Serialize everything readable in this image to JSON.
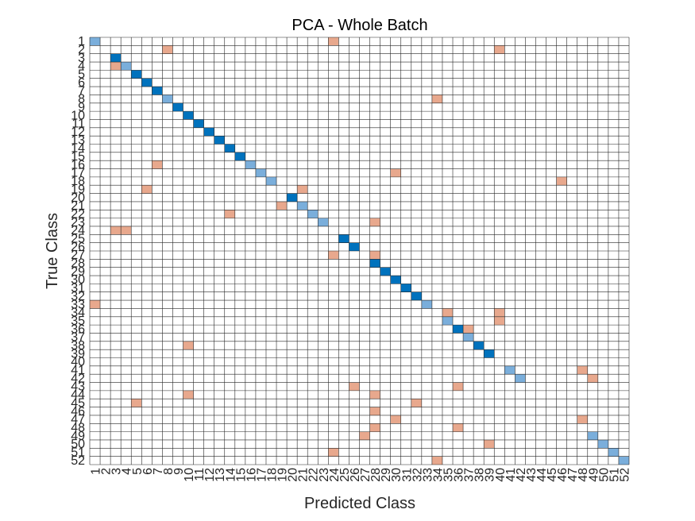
{
  "chart_data": {
    "type": "heatmap",
    "title": "PCA - Whole Batch",
    "xlabel": "Predicted Class",
    "ylabel": "True Class",
    "n_classes": 52,
    "tick_labels": [
      "1",
      "2",
      "3",
      "4",
      "5",
      "6",
      "7",
      "8",
      "9",
      "10",
      "11",
      "12",
      "13",
      "14",
      "15",
      "16",
      "17",
      "18",
      "19",
      "20",
      "21",
      "22",
      "23",
      "24",
      "25",
      "26",
      "27",
      "28",
      "29",
      "30",
      "31",
      "32",
      "33",
      "34",
      "35",
      "36",
      "37",
      "38",
      "39",
      "40",
      "41",
      "42",
      "43",
      "44",
      "45",
      "46",
      "47",
      "48",
      "49",
      "50",
      "51",
      "52"
    ],
    "diagonal_levels": [
      0.4,
      0,
      1,
      0.5,
      1,
      1,
      1,
      0.5,
      1,
      1,
      1,
      1,
      1,
      1,
      1,
      0.5,
      0.5,
      0.5,
      0,
      1,
      0.5,
      0.5,
      0.5,
      0,
      1,
      1,
      0,
      1,
      1,
      1,
      1,
      1,
      0.5,
      0,
      0.5,
      1,
      0.5,
      1,
      1,
      0,
      0.5,
      0.5,
      0,
      0,
      0,
      0,
      0,
      0,
      0.5,
      0.5,
      0.5,
      0.4
    ],
    "off_diagonal": [
      [
        1,
        24
      ],
      [
        2,
        8
      ],
      [
        2,
        40
      ],
      [
        4,
        3
      ],
      [
        8,
        34
      ],
      [
        16,
        7
      ],
      [
        17,
        30
      ],
      [
        18,
        46
      ],
      [
        19,
        6
      ],
      [
        19,
        21
      ],
      [
        21,
        19
      ],
      [
        22,
        14
      ],
      [
        23,
        28
      ],
      [
        24,
        3
      ],
      [
        24,
        4
      ],
      [
        27,
        24
      ],
      [
        27,
        28
      ],
      [
        33,
        1
      ],
      [
        34,
        35
      ],
      [
        34,
        40
      ],
      [
        35,
        40
      ],
      [
        36,
        37
      ],
      [
        38,
        10
      ],
      [
        41,
        48
      ],
      [
        42,
        49
      ],
      [
        43,
        26
      ],
      [
        43,
        36
      ],
      [
        44,
        10
      ],
      [
        44,
        28
      ],
      [
        45,
        5
      ],
      [
        45,
        32
      ],
      [
        46,
        28
      ],
      [
        47,
        30
      ],
      [
        47,
        48
      ],
      [
        48,
        28
      ],
      [
        48,
        36
      ],
      [
        49,
        27
      ],
      [
        50,
        39
      ],
      [
        51,
        24
      ],
      [
        52,
        34
      ]
    ],
    "off_diagonal_level": 0.5,
    "colors": {
      "correct_high": "#0072bd",
      "correct_low": "#7aaedb",
      "error": "#e8a88d",
      "grid": "#262626",
      "background": "#ffffff"
    }
  }
}
